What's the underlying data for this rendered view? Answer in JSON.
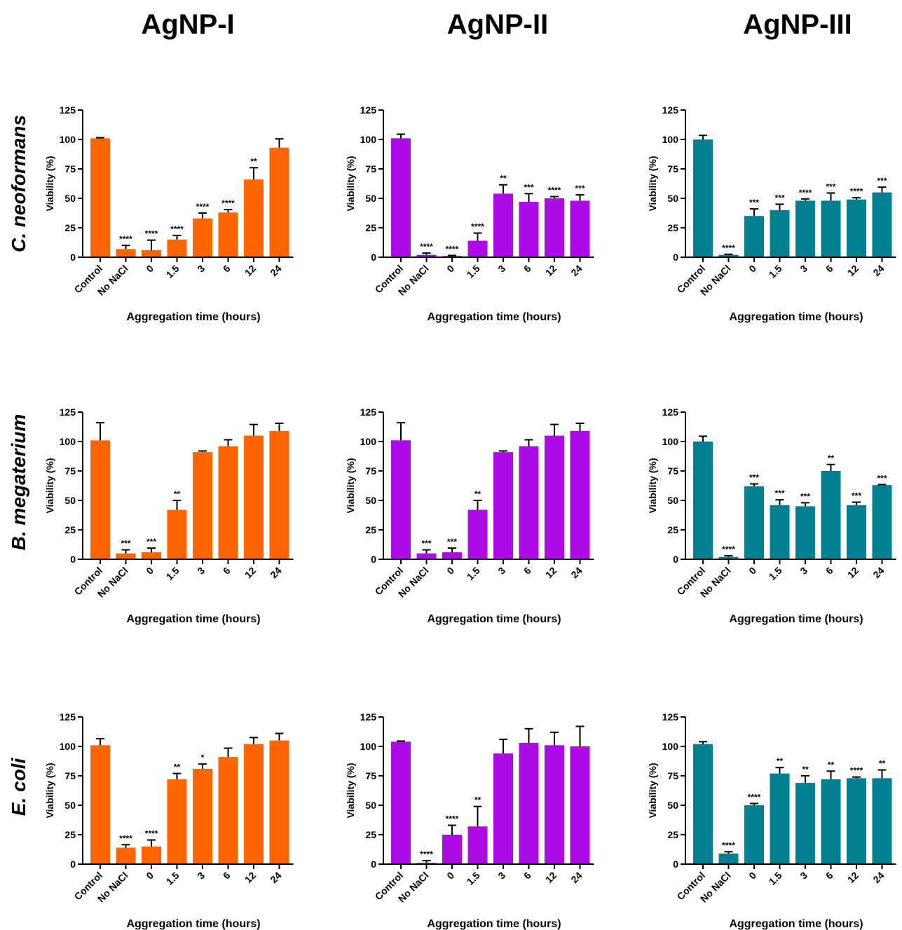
{
  "colors": {
    "AgNP-I": "#ff6600",
    "AgNP-II": "#ac0be6",
    "AgNP-III": "#037f94"
  },
  "column_titles": [
    "AgNP-I",
    "AgNP-II",
    "AgNP-III"
  ],
  "row_titles": [
    "C. neoformans",
    "B. megaterium",
    "E. coli"
  ],
  "chart_data": [
    {
      "type": "bar",
      "row": 0,
      "col": 0,
      "series_name": "AgNP-I",
      "categories": [
        "Control",
        "No NaCl",
        "0",
        "1.5",
        "3",
        "6",
        "12",
        "24"
      ],
      "values": [
        101,
        7,
        6,
        15,
        33,
        38,
        66,
        93
      ],
      "errors": [
        0.5,
        3,
        8.5,
        3.5,
        4.5,
        2.5,
        10,
        7.5
      ],
      "annotations": [
        "",
        "****",
        "****",
        "****",
        "****",
        "****",
        "**",
        ""
      ],
      "xlabel": "Aggregation time (hours)",
      "ylabel": "Viability (%)",
      "yticks": [
        0,
        25,
        50,
        75,
        100,
        125
      ],
      "ylim": [
        0,
        125
      ],
      "grid": false
    },
    {
      "type": "bar",
      "row": 0,
      "col": 1,
      "series_name": "AgNP-II",
      "categories": [
        "Control",
        "No NaCl",
        "0",
        "1.5",
        "3",
        "6",
        "12",
        "24"
      ],
      "values": [
        101,
        2,
        1,
        14,
        54,
        47,
        50,
        48
      ],
      "errors": [
        3.5,
        1.5,
        0.5,
        6.5,
        7.5,
        7,
        1.5,
        5
      ],
      "annotations": [
        "",
        "****",
        "****",
        "****",
        "**",
        "***",
        "****",
        "***"
      ],
      "xlabel": "Aggregation time (hours)",
      "ylabel": "Viability (%)",
      "yticks": [
        0,
        25,
        50,
        75,
        100,
        125
      ],
      "ylim": [
        0,
        125
      ],
      "grid": false
    },
    {
      "type": "bar",
      "row": 0,
      "col": 2,
      "series_name": "AgNP-III",
      "categories": [
        "Control",
        "No NaCl",
        "0",
        "1.5",
        "3",
        "6",
        "12",
        "24"
      ],
      "values": [
        100,
        2,
        35,
        40,
        48,
        48,
        49,
        55
      ],
      "errors": [
        3.5,
        0.5,
        6,
        5,
        1.5,
        6.5,
        1.5,
        4.5
      ],
      "annotations": [
        "",
        "****",
        "***",
        "***",
        "****",
        "***",
        "****",
        "***"
      ],
      "xlabel": "Aggregation time (hours)",
      "ylabel": "Viability (%)",
      "yticks": [
        0,
        25,
        50,
        75,
        100,
        125
      ],
      "ylim": [
        0,
        125
      ],
      "grid": false
    },
    {
      "type": "bar",
      "row": 1,
      "col": 0,
      "series_name": "AgNP-I",
      "categories": [
        "Control",
        "No NaCl",
        "0",
        "1.5",
        "3",
        "6",
        "12",
        "24"
      ],
      "values": [
        101,
        5,
        6,
        42,
        91,
        96,
        105,
        109
      ],
      "errors": [
        15,
        3,
        3.5,
        8,
        1,
        5.5,
        9.5,
        6.5
      ],
      "annotations": [
        "",
        "***",
        "***",
        "**",
        "",
        "",
        "",
        ""
      ],
      "xlabel": "Aggregation time (hours)",
      "ylabel": "Viability (%)",
      "yticks": [
        0,
        25,
        50,
        75,
        100,
        125
      ],
      "ylim": [
        0,
        125
      ],
      "grid": false
    },
    {
      "type": "bar",
      "row": 1,
      "col": 1,
      "series_name": "AgNP-II",
      "categories": [
        "Control",
        "No NaCl",
        "0",
        "1.5",
        "3",
        "6",
        "12",
        "24"
      ],
      "values": [
        101,
        5,
        6,
        42,
        91,
        96,
        105,
        109
      ],
      "errors": [
        15,
        3,
        3.5,
        8,
        1,
        5.5,
        9.5,
        6.5
      ],
      "annotations": [
        "",
        "***",
        "***",
        "**",
        "",
        "",
        "",
        ""
      ],
      "xlabel": "Aggregation time (hours)",
      "ylabel": "Viability (%)",
      "yticks": [
        0,
        25,
        50,
        75,
        100,
        125
      ],
      "ylim": [
        0,
        125
      ],
      "grid": false
    },
    {
      "type": "bar",
      "row": 1,
      "col": 2,
      "series_name": "AgNP-III",
      "categories": [
        "Control",
        "No NaCl",
        "0",
        "1.5",
        "3",
        "6",
        "12",
        "24"
      ],
      "values": [
        100,
        2,
        62,
        46,
        45,
        75,
        46,
        63
      ],
      "errors": [
        4.5,
        1,
        2,
        4.5,
        3,
        5.5,
        2.5,
        0.5
      ],
      "annotations": [
        "",
        "****",
        "***",
        "***",
        "***",
        "**",
        "***",
        "***"
      ],
      "xlabel": "Aggregation time (hours)",
      "ylabel": "Viability (%)",
      "yticks": [
        0,
        25,
        50,
        75,
        100,
        125
      ],
      "ylim": [
        0,
        125
      ],
      "grid": false
    },
    {
      "type": "bar",
      "row": 2,
      "col": 0,
      "series_name": "AgNP-I",
      "categories": [
        "Control",
        "No NaCl",
        "0",
        "1.5",
        "3",
        "6",
        "12",
        "24"
      ],
      "values": [
        101,
        14,
        15,
        72,
        81,
        91,
        102,
        105
      ],
      "errors": [
        5.5,
        2.5,
        5.5,
        5,
        4,
        7.5,
        5.5,
        6
      ],
      "annotations": [
        "",
        "****",
        "****",
        "**",
        "*",
        "",
        "",
        ""
      ],
      "xlabel": "Aggregation time (hours)",
      "ylabel": "Viability (%)",
      "yticks": [
        0,
        25,
        50,
        75,
        100,
        125
      ],
      "ylim": [
        0,
        125
      ],
      "grid": false
    },
    {
      "type": "bar",
      "row": 2,
      "col": 1,
      "series_name": "AgNP-II",
      "categories": [
        "Control",
        "No NaCl",
        "0",
        "1.5",
        "3",
        "6",
        "12",
        "24"
      ],
      "values": [
        104,
        1,
        25,
        32,
        94,
        103,
        101,
        100
      ],
      "errors": [
        0.5,
        2,
        8,
        17,
        12,
        12,
        11,
        17
      ],
      "annotations": [
        "",
        "****",
        "****",
        "**",
        "",
        "",
        "",
        ""
      ],
      "xlabel": "Aggregation time (hours)",
      "ylabel": "Viability (%)",
      "yticks": [
        0,
        25,
        50,
        75,
        100,
        125
      ],
      "ylim": [
        0,
        125
      ],
      "grid": false
    },
    {
      "type": "bar",
      "row": 2,
      "col": 2,
      "series_name": "AgNP-III",
      "categories": [
        "Control",
        "No NaCl",
        "0",
        "1.5",
        "3",
        "6",
        "12",
        "24"
      ],
      "values": [
        102,
        9,
        50,
        77,
        69,
        72,
        73,
        73
      ],
      "errors": [
        2,
        1.5,
        1.5,
        5,
        6,
        7,
        1,
        7
      ],
      "annotations": [
        "",
        "****",
        "****",
        "**",
        "**",
        "**",
        "****",
        "**"
      ],
      "xlabel": "Aggregation time (hours)",
      "ylabel": "Viability (%)",
      "yticks": [
        0,
        25,
        50,
        75,
        100,
        125
      ],
      "ylim": [
        0,
        125
      ],
      "grid": false
    }
  ]
}
